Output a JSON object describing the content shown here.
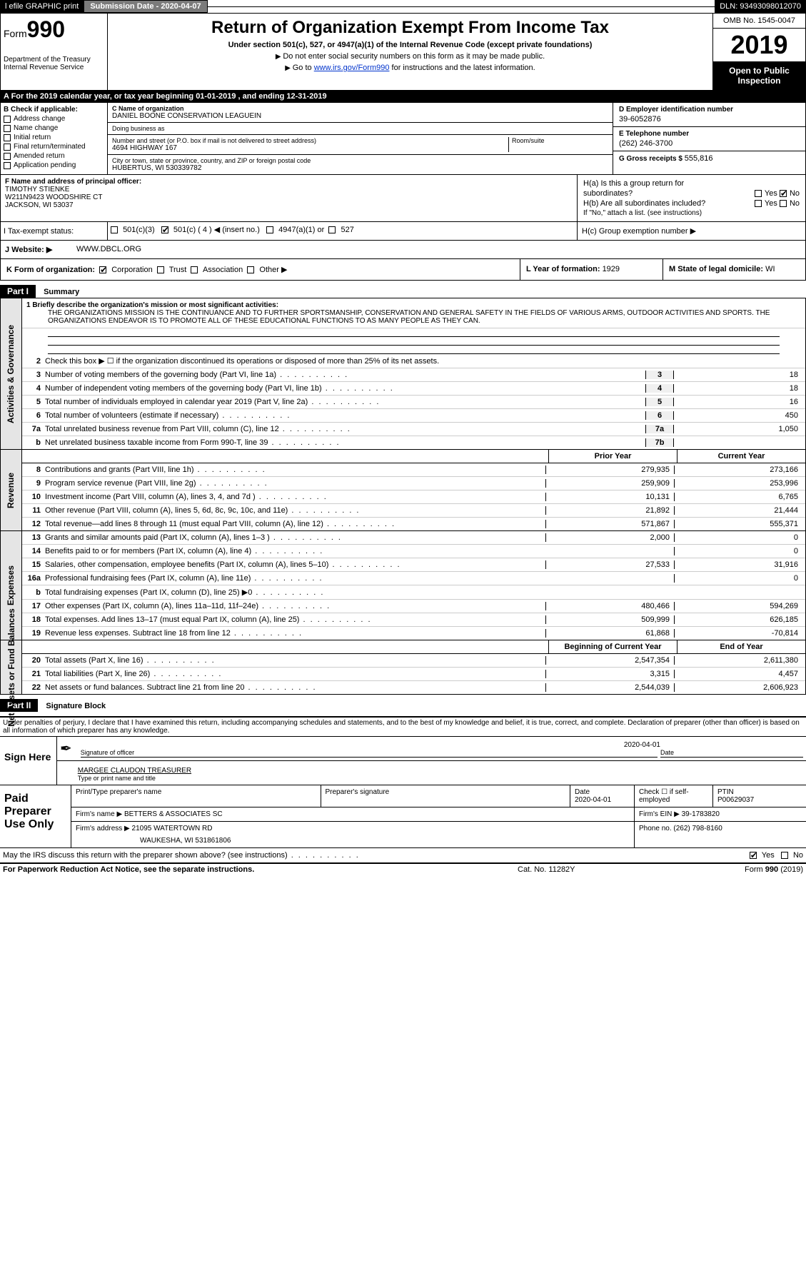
{
  "topbar": {
    "efile": "l efile GRAPHIC print",
    "submission_label": "Submission Date - 2020-04-07",
    "dln": "DLN: 93493098012070"
  },
  "header": {
    "form_prefix": "Form",
    "form_number": "990",
    "dept": "Department of the Treasury\nInternal Revenue Service",
    "title": "Return of Organization Exempt From Income Tax",
    "under": "Under section 501(c), 527, or 4947(a)(1) of the Internal Revenue Code (except private foundations)",
    "donot": "Do not enter social security numbers on this form as it may be made public.",
    "goto_pre": "Go to ",
    "goto_link": "www.irs.gov/Form990",
    "goto_post": " for instructions and the latest information.",
    "omb": "OMB No. 1545-0047",
    "year": "2019",
    "open": "Open to Public Inspection"
  },
  "lineA": {
    "text": "A  For the 2019 calendar year, or tax year beginning 01-01-2019        , and ending 12-31-2019"
  },
  "colB": {
    "header": "B Check if applicable:",
    "items": [
      "Address change",
      "Name change",
      "Initial return",
      "Final return/terminated",
      "Amended return",
      "Application pending"
    ]
  },
  "colC": {
    "name_lbl": "C Name of organization",
    "name": "DANIEL BOONE CONSERVATION LEAGUEIN",
    "dba_lbl": "Doing business as",
    "dba": "",
    "street_lbl": "Number and street (or P.O. box if mail is not delivered to street address)",
    "street": "4694 HIGHWAY 167",
    "room_lbl": "Room/suite",
    "city_lbl": "City or town, state or province, country, and ZIP or foreign postal code",
    "city": "HUBERTUS, WI  530339782"
  },
  "colD": {
    "ein_lbl": "D Employer identification number",
    "ein": "39-6052876",
    "tel_lbl": "E Telephone number",
    "tel": "(262) 246-3700",
    "gross_lbl": "G Gross receipts $ ",
    "gross": "555,816"
  },
  "colF": {
    "lbl": "F  Name and address of principal officer:",
    "name": "TIMOTHY STIENKE",
    "addr1": "W211N9423 WOODSHIRE CT",
    "addr2": "JACKSON, WI  53037"
  },
  "colH": {
    "ha": "H(a)   Is this a group return for",
    "ha2": "subordinates?",
    "hb": "H(b)   Are all subordinates included?",
    "hb_note": "If \"No,\" attach a list. (see instructions)",
    "hc": "H(c)   Group exemption number ▶",
    "yes": "Yes",
    "no": "No"
  },
  "rowI": {
    "lbl": "I    Tax-exempt status:",
    "c3": "501(c)(3)",
    "c": "501(c) ( 4 ) ◀ (insert no.)",
    "a1": "4947(a)(1) or",
    "s527": "527"
  },
  "rowJ": {
    "lbl": "J   Website: ▶",
    "val": "WWW.DBCL.ORG"
  },
  "rowK": {
    "lbl": "K Form of organization:",
    "corp": "Corporation",
    "trust": "Trust",
    "assoc": "Association",
    "other": "Other ▶"
  },
  "rowL": {
    "lbl": "L Year of formation: ",
    "val": "1929"
  },
  "rowM": {
    "lbl": "M State of legal domicile: ",
    "val": "WI"
  },
  "part1": {
    "hdr": "Part I",
    "title": "Summary",
    "mission_lbl": "1   Briefly describe the organization's mission or most significant activities:",
    "mission": "THE ORGANIZATIONS MISSION IS THE CONTINUANCE AND TO FURTHER SPORTSMANSHIP, CONSERVATION AND GENERAL SAFETY IN THE FIELDS OF VARIOUS ARMS, OUTDOOR ACTIVITIES AND SPORTS. THE ORGANIZATIONS ENDEAVOR IS TO PROMOTE ALL OF THESE EDUCATIONAL FUNCTIONS TO AS MANY PEOPLE AS THEY CAN.",
    "line2": "Check this box ▶ ☐  if the organization discontinued its operations or disposed of more than 25% of its net assets.",
    "sections": {
      "activities": {
        "label": "Activities & Governance",
        "rows": [
          {
            "n": "3",
            "desc": "Number of voting members of the governing body (Part VI, line 1a)",
            "box": "3",
            "val": "18"
          },
          {
            "n": "4",
            "desc": "Number of independent voting members of the governing body (Part VI, line 1b)",
            "box": "4",
            "val": "18"
          },
          {
            "n": "5",
            "desc": "Total number of individuals employed in calendar year 2019 (Part V, line 2a)",
            "box": "5",
            "val": "16"
          },
          {
            "n": "6",
            "desc": "Total number of volunteers (estimate if necessary)",
            "box": "6",
            "val": "450"
          },
          {
            "n": "7a",
            "desc": "Total unrelated business revenue from Part VIII, column (C), line 12",
            "box": "7a",
            "val": "1,050"
          },
          {
            "n": "b",
            "desc": "Net unrelated business taxable income from Form 990-T, line 39",
            "box": "7b",
            "val": ""
          }
        ]
      },
      "revenue": {
        "label": "Revenue",
        "hdr_prior": "Prior Year",
        "hdr_current": "Current Year",
        "rows": [
          {
            "n": "8",
            "desc": "Contributions and grants (Part VIII, line 1h)",
            "prior": "279,935",
            "cur": "273,166"
          },
          {
            "n": "9",
            "desc": "Program service revenue (Part VIII, line 2g)",
            "prior": "259,909",
            "cur": "253,996"
          },
          {
            "n": "10",
            "desc": "Investment income (Part VIII, column (A), lines 3, 4, and 7d )",
            "prior": "10,131",
            "cur": "6,765"
          },
          {
            "n": "11",
            "desc": "Other revenue (Part VIII, column (A), lines 5, 6d, 8c, 9c, 10c, and 11e)",
            "prior": "21,892",
            "cur": "21,444"
          },
          {
            "n": "12",
            "desc": "Total revenue—add lines 8 through 11 (must equal Part VIII, column (A), line 12)",
            "prior": "571,867",
            "cur": "555,371"
          }
        ]
      },
      "expenses": {
        "label": "Expenses",
        "rows": [
          {
            "n": "13",
            "desc": "Grants and similar amounts paid (Part IX, column (A), lines 1–3 )",
            "prior": "2,000",
            "cur": "0"
          },
          {
            "n": "14",
            "desc": "Benefits paid to or for members (Part IX, column (A), line 4)",
            "prior": "",
            "cur": "0"
          },
          {
            "n": "15",
            "desc": "Salaries, other compensation, employee benefits (Part IX, column (A), lines 5–10)",
            "prior": "27,533",
            "cur": "31,916"
          },
          {
            "n": "16a",
            "desc": "Professional fundraising fees (Part IX, column (A), line 11e)",
            "prior": "",
            "cur": "0"
          },
          {
            "n": "b",
            "desc": "Total fundraising expenses (Part IX, column (D), line 25) ▶0",
            "prior": "GREY",
            "cur": "GREY"
          },
          {
            "n": "17",
            "desc": "Other expenses (Part IX, column (A), lines 11a–11d, 11f–24e)",
            "prior": "480,466",
            "cur": "594,269"
          },
          {
            "n": "18",
            "desc": "Total expenses. Add lines 13–17 (must equal Part IX, column (A), line 25)",
            "prior": "509,999",
            "cur": "626,185"
          },
          {
            "n": "19",
            "desc": "Revenue less expenses. Subtract line 18 from line 12",
            "prior": "61,868",
            "cur": "-70,814"
          }
        ]
      },
      "netassets": {
        "label": "Net Assets or Fund Balances",
        "hdr_prior": "Beginning of Current Year",
        "hdr_current": "End of Year",
        "rows": [
          {
            "n": "20",
            "desc": "Total assets (Part X, line 16)",
            "prior": "2,547,354",
            "cur": "2,611,380"
          },
          {
            "n": "21",
            "desc": "Total liabilities (Part X, line 26)",
            "prior": "3,315",
            "cur": "4,457"
          },
          {
            "n": "22",
            "desc": "Net assets or fund balances. Subtract line 21 from line 20",
            "prior": "2,544,039",
            "cur": "2,606,923"
          }
        ]
      }
    }
  },
  "part2": {
    "hdr": "Part II",
    "title": "Signature Block",
    "perjury": "Under penalties of perjury, I declare that I have examined this return, including accompanying schedules and statements, and to the best of my knowledge and belief, it is true, correct, and complete. Declaration of preparer (other than officer) is based on all information of which preparer has any knowledge."
  },
  "sign": {
    "lbl": "Sign Here",
    "sig_officer": "Signature of officer",
    "date": "2020-04-01",
    "date_lbl": "Date",
    "name": "MARGEE CLAUDON TREASURER",
    "name_lbl": "Type or print name and title"
  },
  "paid": {
    "lbl": "Paid Preparer Use Only",
    "print_lbl": "Print/Type preparer's name",
    "sig_lbl": "Preparer's signature",
    "date_lbl": "Date",
    "date": "2020-04-01",
    "check_lbl": "Check ☐ if self-employed",
    "ptin_lbl": "PTIN",
    "ptin": "P00629037",
    "firm_name_lbl": "Firm's name   ▶ ",
    "firm_name": "BETTERS & ASSOCIATES SC",
    "firm_ein_lbl": "Firm's EIN ▶ ",
    "firm_ein": "39-1783820",
    "firm_addr_lbl": "Firm's address ▶ ",
    "firm_addr": "21095 WATERTOWN RD",
    "firm_city": "WAUKESHA, WI  531861806",
    "phone_lbl": "Phone no. ",
    "phone": "(262) 798-8160"
  },
  "discuss": {
    "text": "May the IRS discuss this return with the preparer shown above? (see instructions)",
    "yes": "Yes",
    "no": "No"
  },
  "footer": {
    "left": "For Paperwork Reduction Act Notice, see the separate instructions.",
    "mid": "Cat. No. 11282Y",
    "right": "Form 990 (2019)"
  }
}
